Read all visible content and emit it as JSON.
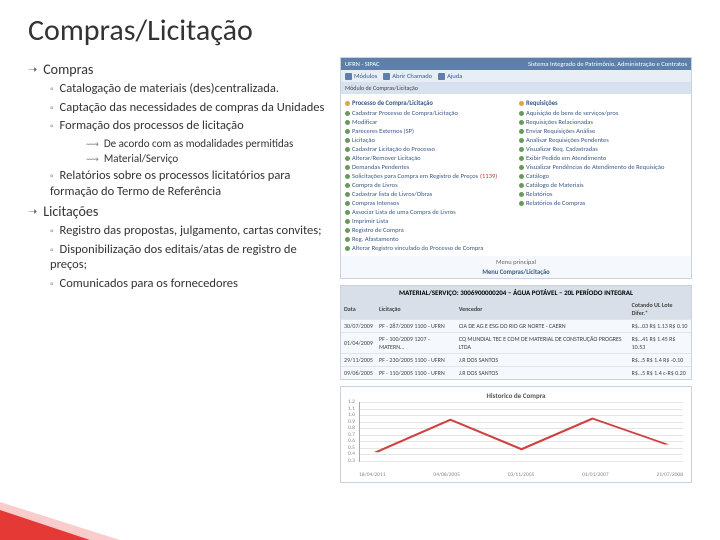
{
  "title": "Compras/Licitação",
  "sections": [
    {
      "head": "Compras",
      "items": [
        {
          "text": "Catalogação de materiais (des)centralizada."
        },
        {
          "text": "Captação das necessidades de compras da Unidades"
        },
        {
          "text": "Formação dos processos de licitação",
          "sub": [
            "De acordo com as modalidades permitidas",
            "Material/Serviço"
          ]
        },
        {
          "text": "Relatórios sobre os processos licitatórios para formação do Termo de Referência"
        }
      ]
    },
    {
      "head": "Licitações",
      "items": [
        {
          "text": "Registro das propostas, julgamento, cartas convites;"
        },
        {
          "text": "Disponibilização dos editais/atas de registro de preços;"
        },
        {
          "text": "Comunicados para os fornecedores"
        }
      ]
    }
  ],
  "panel": {
    "header_left": "UFRN - SIPAC",
    "header_right": "Sistema Integrado de Patrimônio, Administração e Contratos",
    "toolbar": [
      "Módulos",
      "Abrir Chamado",
      "Ajuda"
    ],
    "sub": "Módulo de Compras/Licitação",
    "left_head": "Processo de Compra/Licitação",
    "right_head": "Requisições",
    "left_items": [
      "Cadastrar Processo de Compra/Licitação",
      "Modificar",
      "Pareceres Externos (SP)",
      "Licitação",
      "Cadastrar Licitação do Processo",
      "Alterar/Remover Licitação",
      "Demandas Pendentes",
      "Solicitações para Compra em Registro de Preços",
      "Compra de Livros",
      "Cadastrar lista de Livros/Obras",
      "Compras Intensos",
      "Associar Lista de uma Compra de Livros",
      "Imprimir Lista",
      "Registro de Compra",
      "Reg. Afastamento",
      "Alterar Registro vinculado do Processo de Compra"
    ],
    "right_items": [
      "Aquisição de bens de serviços/pros",
      "Requisições Relacionadas",
      "Enviar Requisições Análise",
      "Analisar Requisições Pendentes",
      "Visualizar Req. Cadastradas",
      "Exibir Pedido em Atendimento",
      "Visualizar Pendências de Atendimento de Requisição",
      "Catálogo",
      "Catálogo de Materiais",
      "Relatórios",
      "Relatórios de Compras"
    ],
    "nav": "Menu Compras/Licitação",
    "nav_main": "Menu principal",
    "badge": "(1139)"
  },
  "table": {
    "title": "MATERIAL/SERVIÇO: 3006900000204 – ÁGUA POTÁVEL – 20L PERÍODO INTEGRAL",
    "cols": [
      "Data",
      "Licitação",
      "Vencedor",
      "Cotando UL Lote Difer.*"
    ],
    "rows": [
      [
        "30/07/2009",
        "PF - 287/2009 1100 - UFRN",
        "CIA DE AG E ESG DO RIO GR NORTE - CAERN",
        "R$…03  R$ 1.13  R$ 0.10"
      ],
      [
        "01/04/2009",
        "PF - 100/2009 1207 - MATERN…",
        "CQ MUNDIAL TEC E COM DE MATERIAL DE CONSTRUÇÃO PROGRES LTDA",
        "R$…41  R$ 1.45  R$ 10.53"
      ],
      [
        "29/11/2005",
        "PF - 230/2005 1100 - UFRN",
        "J.R DOS SANTOS",
        "R$…5  R$ 1.4  R$ -0.10"
      ],
      [
        "09/06/2005",
        "PF - 110/2005 1100 - UFRN",
        "J.R DOS SANTOS",
        "R$…5  R$ 1.4  c-R$ 0.20"
      ]
    ]
  },
  "chart": {
    "title": "Historico de Compra",
    "y_ticks": [
      "1.2",
      "1.1",
      "1.0",
      "0.9",
      "0.8",
      "0.7",
      "0.6",
      "0.5",
      "0.4",
      "0.3"
    ],
    "x_labels": [
      "18/04/2011",
      "04/08/2005",
      "03/11/2005",
      "01/01/2007",
      "21/07/2008"
    ],
    "line_color": "#d04040",
    "points": [
      {
        "x": 0.05,
        "y": 0.15
      },
      {
        "x": 0.28,
        "y": 0.7
      },
      {
        "x": 0.5,
        "y": 0.2
      },
      {
        "x": 0.72,
        "y": 0.72
      },
      {
        "x": 0.95,
        "y": 0.28
      }
    ]
  }
}
